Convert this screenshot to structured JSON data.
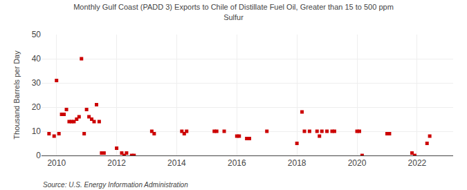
{
  "chart_data": {
    "type": "scatter",
    "title": "Monthly Gulf Coast (PADD 3) Exports to Chile of Distillate Fuel Oil, Greater than 15 to 500 ppm\nSulfur",
    "ylabel": "Thousand Barrels per Day",
    "annotations": [
      "Source: U.S. Energy Information Administration"
    ],
    "color": "#cc0000",
    "marker": "square",
    "grid": true,
    "xlim": [
      2009.5,
      2023.2
    ],
    "xticks": [
      2010,
      2012,
      2014,
      2016,
      2018,
      2020,
      2022
    ],
    "ylim": [
      0,
      50
    ],
    "yticks": [
      0,
      10,
      20,
      30,
      40,
      50
    ],
    "x": [
      2009.75,
      2009.92,
      2010.0,
      2010.08,
      2010.17,
      2010.25,
      2010.33,
      2010.42,
      2010.5,
      2010.58,
      2010.67,
      2010.75,
      2010.83,
      2010.92,
      2011.0,
      2011.08,
      2011.17,
      2011.25,
      2011.33,
      2011.42,
      2011.5,
      2011.58,
      2012.0,
      2012.17,
      2012.25,
      2012.33,
      2012.5,
      2012.58,
      2013.17,
      2013.25,
      2014.17,
      2014.25,
      2014.33,
      2015.25,
      2015.33,
      2015.58,
      2016.0,
      2016.08,
      2016.33,
      2016.42,
      2017.0,
      2018.0,
      2018.17,
      2018.25,
      2018.42,
      2018.67,
      2018.75,
      2018.83,
      2019.0,
      2019.17,
      2019.25,
      2020.0,
      2020.08,
      2020.17,
      2021.0,
      2021.08,
      2021.83,
      2021.92,
      2022.33,
      2022.42
    ],
    "values": [
      9,
      8,
      31,
      9,
      17,
      17,
      19,
      14,
      14,
      14,
      15,
      16,
      40,
      9,
      19,
      16,
      15,
      14,
      21,
      14,
      1,
      1,
      3,
      1,
      0,
      1,
      0,
      0,
      10,
      9,
      10,
      9,
      10,
      10,
      10,
      10,
      8,
      8,
      7,
      7,
      10,
      5,
      18,
      10,
      10,
      10,
      8,
      10,
      10,
      10,
      10,
      10,
      10,
      0,
      9,
      9,
      1,
      0,
      5,
      8
    ]
  }
}
